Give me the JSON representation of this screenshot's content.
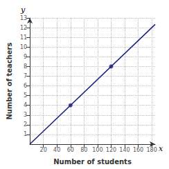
{
  "chart_data": {
    "type": "line",
    "x_label": "Number of students",
    "y_label": "Number of teachers",
    "annotations": [
      "x",
      "y"
    ],
    "series": [
      {
        "type": "line",
        "x": [
          0,
          185
        ],
        "values": [
          0,
          12.333333333333334
        ],
        "color": "#1a237e"
      },
      {
        "type": "scatter",
        "x": [
          60,
          120
        ],
        "values": [
          4,
          8
        ],
        "color": "#1a237e",
        "marker": "circle"
      }
    ],
    "xlim": [
      0,
      185
    ],
    "ylim": [
      0,
      13
    ],
    "xticks": [
      20,
      40,
      60,
      80,
      100,
      120,
      140,
      160,
      180
    ],
    "yticks": [
      1,
      2,
      3,
      4,
      5,
      6,
      7,
      8,
      9,
      10,
      11,
      12,
      13
    ],
    "grid": true
  }
}
